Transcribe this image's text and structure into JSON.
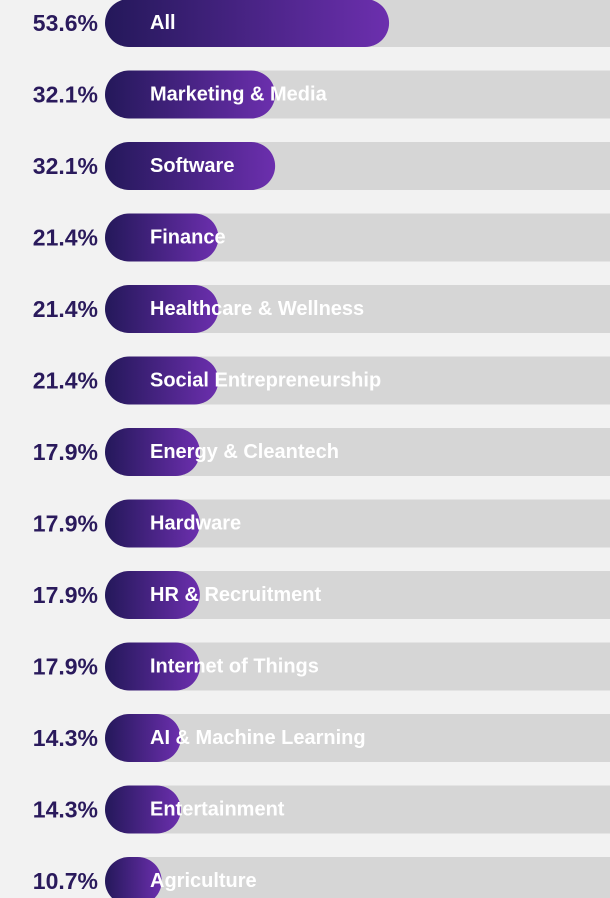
{
  "chart_data": {
    "type": "bar",
    "orientation": "horizontal",
    "categories": [
      "All",
      "Marketing & Media",
      "Software",
      "Finance",
      "Healthcare & Wellness",
      "Social Entrepreneurship",
      "Energy & Cleantech",
      "Hardware",
      "HR & Recruitment",
      "Internet of Things",
      "AI & Machine Learning",
      "Entertainment",
      "Agriculture"
    ],
    "values": [
      53.6,
      32.1,
      32.1,
      21.4,
      21.4,
      21.4,
      17.9,
      17.9,
      17.9,
      17.9,
      14.3,
      14.3,
      10.7
    ],
    "value_labels": [
      "53.6%",
      "32.1%",
      "32.1%",
      "21.4%",
      "21.4%",
      "21.4%",
      "17.9%",
      "17.9%",
      "17.9%",
      "17.9%",
      "14.3%",
      "14.3%",
      "10.7%"
    ],
    "color": "#5a2a96"
  }
}
